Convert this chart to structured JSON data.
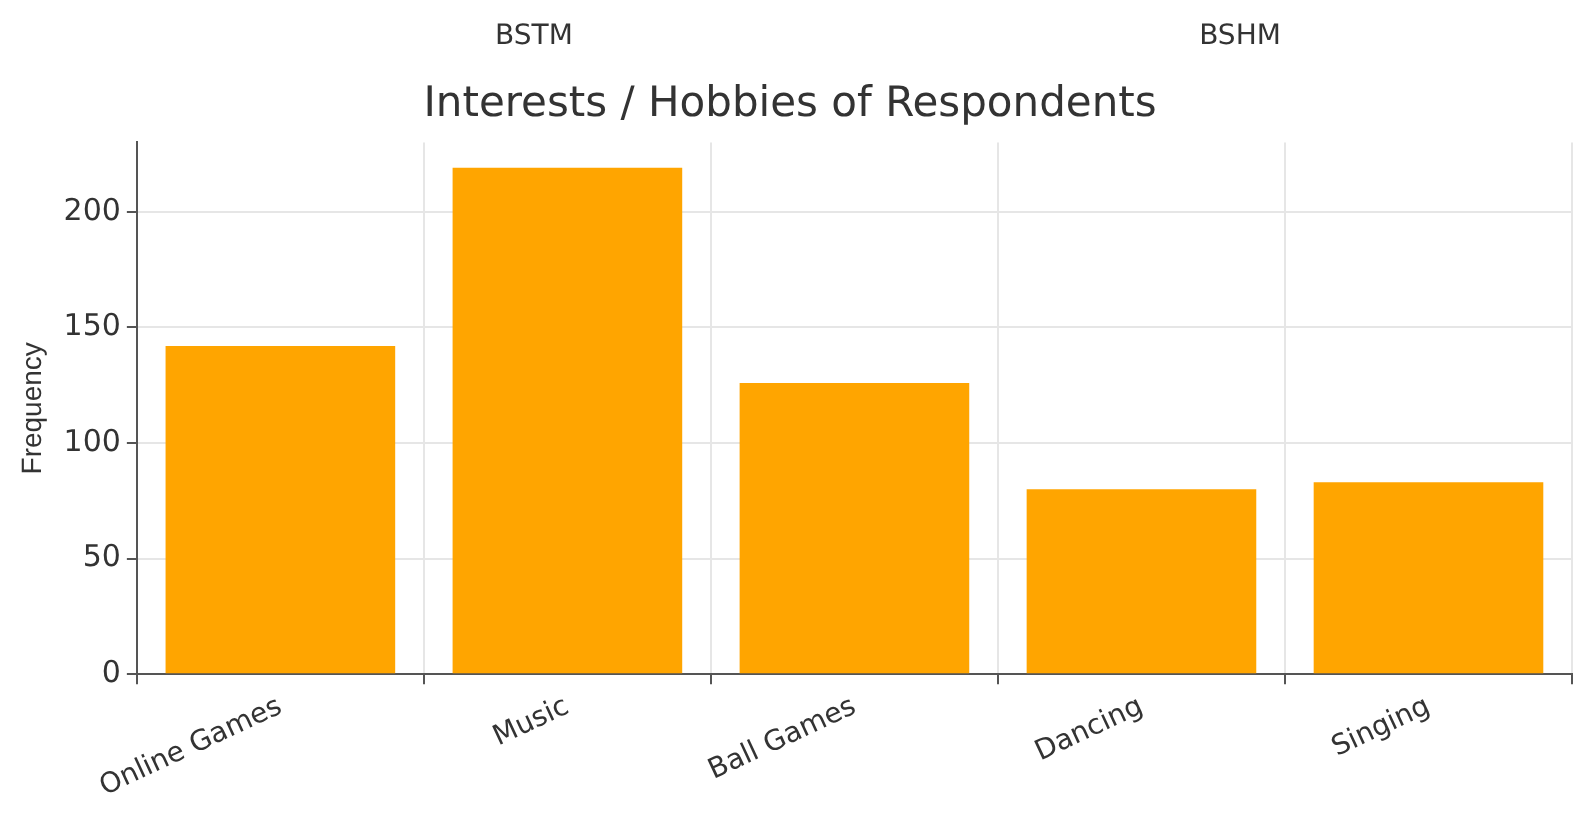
{
  "chart_data": {
    "type": "bar",
    "title": "Interests / Hobbies of Respondents",
    "ylabel": "Frequency",
    "annotations": [
      "BSTM",
      "BSHM"
    ],
    "categories": [
      "Online Games",
      "Music",
      "Ball Games",
      "Dancing",
      "Singing"
    ],
    "values": [
      142,
      219,
      126,
      80,
      83
    ],
    "color": "#ffa500",
    "ylim": [
      0,
      230
    ],
    "yticks": [
      0,
      50,
      100,
      150,
      200
    ],
    "grid": true
  }
}
